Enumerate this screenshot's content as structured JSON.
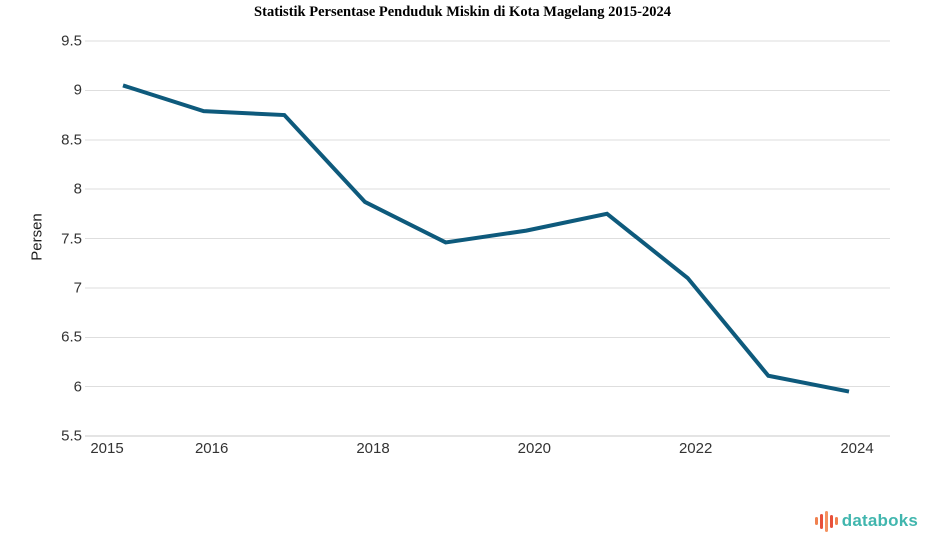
{
  "chart": {
    "title": "Statistik Persentase Penduduk Miskin di Kota Magelang 2015-2024",
    "y_axis_title": "Persen"
  },
  "chart_data": {
    "type": "line",
    "title": "Statistik Persentase Penduduk Miskin di Kota Magelang 2015-2024",
    "xlabel": "",
    "ylabel": "Persen",
    "x": [
      2015,
      2016,
      2017,
      2018,
      2019,
      2020,
      2021,
      2022,
      2023,
      2024
    ],
    "values": [
      9.05,
      8.79,
      8.75,
      7.87,
      7.46,
      7.58,
      7.75,
      7.1,
      6.11,
      5.95
    ],
    "ylim": [
      5.5,
      9.5
    ],
    "y_ticks": [
      9.5,
      9,
      8.5,
      8,
      7.5,
      7,
      6.5,
      6,
      5.5
    ],
    "x_ticks": [
      2015,
      2016,
      2018,
      2020,
      2022,
      2024
    ],
    "grid": "horizontal",
    "legend": "none",
    "line_color": "#0e5a7c",
    "gridline_color": "#dedede",
    "axis_line_color": "#c9c9c9"
  },
  "branding": {
    "wordmark": "databoks",
    "wordmark_color": "#41b6ae",
    "icon_bar_colors": [
      "#f0814f",
      "#e8503a",
      "#f5915f",
      "#e8503a",
      "#f0814f"
    ]
  }
}
